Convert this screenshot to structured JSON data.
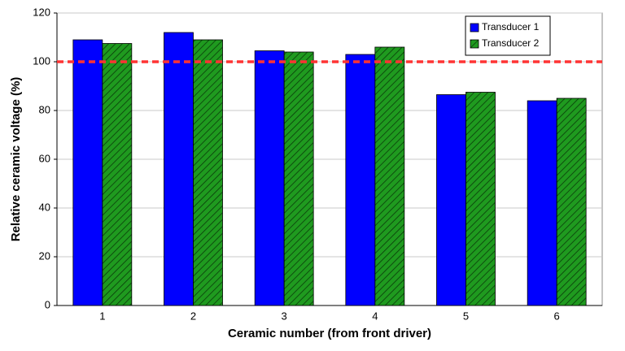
{
  "chart_data": {
    "type": "bar",
    "x_label": "Ceramic number (from front driver)",
    "y_label": "Relative ceramic voltage (%)",
    "categories": [
      "1",
      "2",
      "3",
      "4",
      "5",
      "6"
    ],
    "series": [
      {
        "name": "Transducer 1",
        "color": "#0000ff",
        "values": [
          109,
          112,
          104.5,
          103,
          86.5,
          84
        ]
      },
      {
        "name": "Transducer 2",
        "color": "#1f9a1f",
        "pattern": "hatch",
        "values": [
          107.5,
          109,
          104,
          106,
          87.5,
          85
        ]
      }
    ],
    "reference_line": {
      "value": 100,
      "color": "#ff3333"
    },
    "ylim": [
      0,
      120
    ],
    "yticks": [
      0,
      20,
      40,
      60,
      80,
      100,
      120
    ],
    "grid": true,
    "legend": "top-right"
  }
}
